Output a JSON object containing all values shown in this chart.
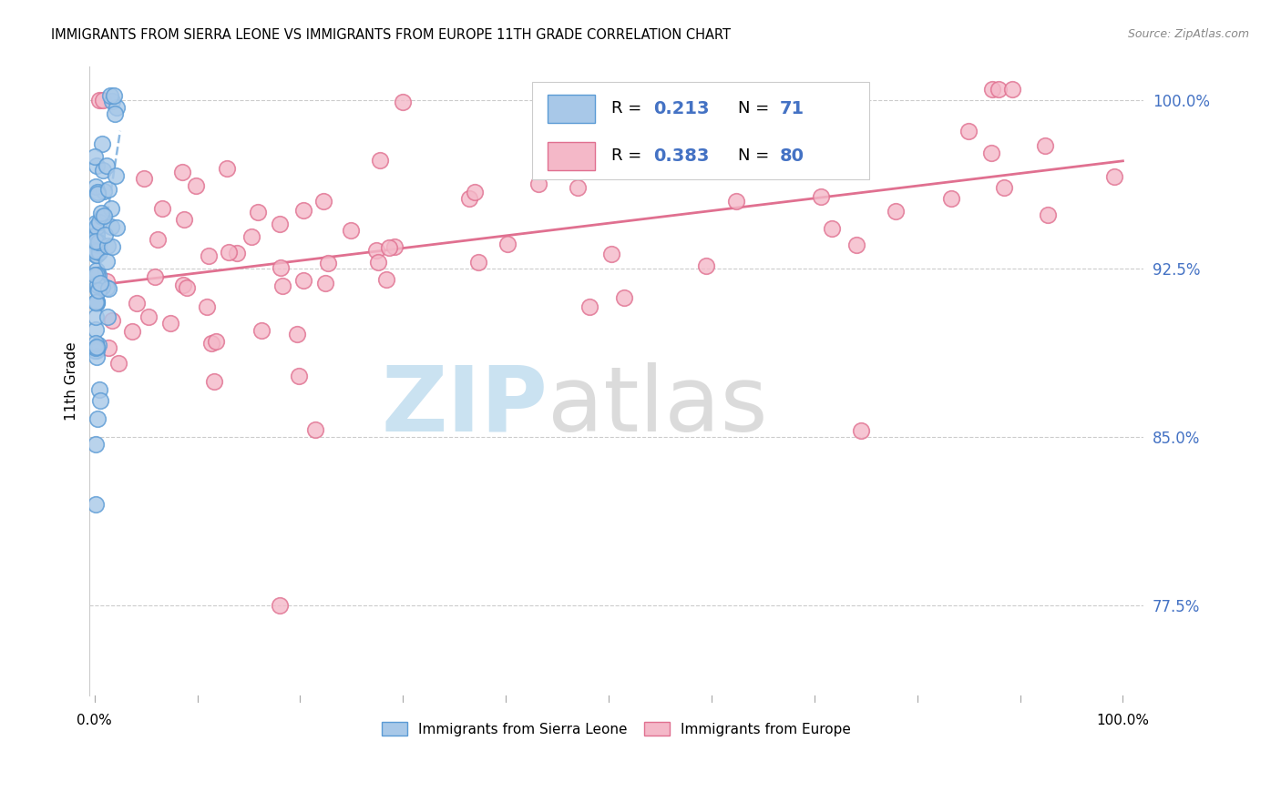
{
  "title": "IMMIGRANTS FROM SIERRA LEONE VS IMMIGRANTS FROM EUROPE 11TH GRADE CORRELATION CHART",
  "source": "Source: ZipAtlas.com",
  "ylabel": "11th Grade",
  "ytick_labels": [
    "77.5%",
    "85.0%",
    "92.5%",
    "100.0%"
  ],
  "ytick_values": [
    0.775,
    0.85,
    0.925,
    1.0
  ],
  "xlim": [
    -0.005,
    1.02
  ],
  "ylim": [
    0.735,
    1.015
  ],
  "legend_R1": "0.213",
  "legend_N1": "71",
  "legend_R2": "0.383",
  "legend_N2": "80",
  "color_sierra_fill": "#a8c8e8",
  "color_sierra_edge": "#5b9bd5",
  "color_europe_fill": "#f4b8c8",
  "color_europe_edge": "#e07090",
  "color_trend_sierra": "#5b9bd5",
  "color_trend_europe": "#e07090",
  "color_grid": "#cccccc",
  "color_ytick": "#4472c4",
  "watermark_zip_color": "#c5dff0",
  "watermark_atlas_color": "#d8d8d8"
}
